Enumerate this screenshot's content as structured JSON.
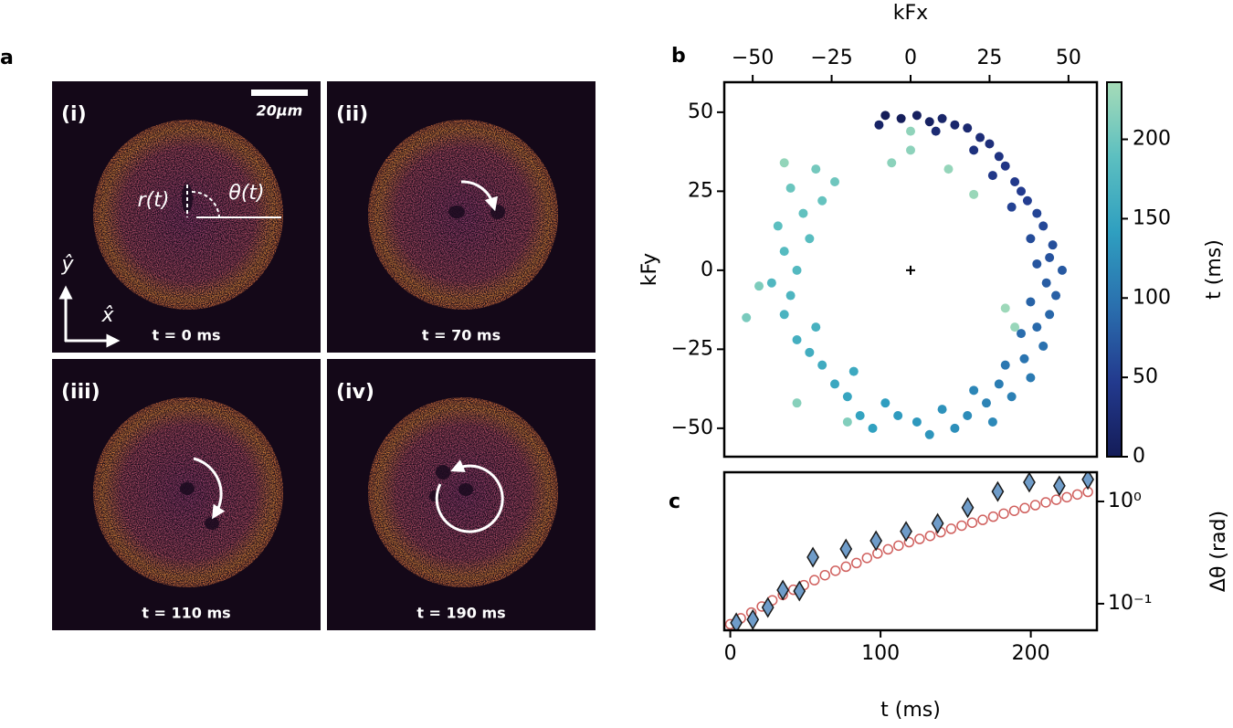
{
  "images": {
    "panel_label": "a",
    "scale_bar": "20μm",
    "panels": [
      {
        "label": "(i)",
        "time": "t = 0 ms"
      },
      {
        "label": "(ii)",
        "time": "t = 70 ms"
      },
      {
        "label": "(iii)",
        "time": "t = 110 ms"
      },
      {
        "label": "(iv)",
        "time": "t = 190 ms"
      }
    ],
    "annotations": {
      "radius": "r(t)",
      "angle": "θ(t)",
      "y_axis": "ŷ",
      "x_axis": "x̂"
    }
  },
  "chart_data": [
    {
      "type": "scatter",
      "panel_label": "b",
      "xlabel": "kFx",
      "ylabel": "kFy",
      "xaxis_position": "top",
      "yaxis_position": "left",
      "xlim": [
        -59,
        59
      ],
      "ylim": [
        -59,
        59.5
      ],
      "xticks": [
        {
          "value": -50,
          "label": "−50"
        },
        {
          "value": -25,
          "label": "−25"
        },
        0,
        25,
        50
      ],
      "yticks": [
        {
          "value": -50,
          "label": "−50"
        },
        {
          "value": -25,
          "label": "−25"
        },
        0,
        25,
        50
      ],
      "x": [
        -8,
        -3,
        2,
        6,
        -10,
        10,
        14,
        18,
        8,
        22,
        25,
        20,
        28,
        30,
        26,
        33,
        35,
        37,
        32,
        40,
        42,
        38,
        45,
        44,
        40,
        48,
        43,
        46,
        38,
        44,
        40,
        35,
        42,
        36,
        30,
        38,
        28,
        32,
        24,
        20,
        26,
        18,
        14,
        10,
        6,
        2,
        -4,
        -8,
        -12,
        -16,
        -20,
        -24,
        -18,
        -28,
        -32,
        -36,
        -30,
        -40,
        -38,
        -44,
        -36,
        -40,
        -32,
        -42,
        -34,
        -28,
        -38,
        -24,
        -30,
        -52,
        -48,
        -20,
        -36,
        -6,
        0,
        12,
        20,
        30,
        33,
        -40,
        0
      ],
      "values": [
        49,
        48,
        49,
        47,
        46,
        48,
        46,
        45,
        44,
        42,
        40,
        38,
        36,
        33,
        30,
        28,
        25,
        22,
        20,
        18,
        14,
        10,
        8,
        4,
        2,
        0,
        -4,
        -8,
        -10,
        -14,
        -18,
        -20,
        -24,
        -28,
        -30,
        -34,
        -36,
        -40,
        -42,
        -38,
        -48,
        -46,
        -50,
        -44,
        -52,
        -48,
        -46,
        -42,
        -50,
        -46,
        -40,
        -36,
        -32,
        -30,
        -26,
        -22,
        -18,
        -14,
        -8,
        -4,
        0,
        6,
        10,
        14,
        18,
        22,
        26,
        28,
        32,
        -15,
        -5,
        -48,
        -42,
        34,
        44,
        32,
        24,
        -12,
        -18,
        34,
        38
      ],
      "color_values": [
        0,
        3,
        6,
        9,
        12,
        15,
        18,
        21,
        24,
        27,
        30,
        33,
        36,
        39,
        42,
        45,
        48,
        51,
        54,
        57,
        60,
        63,
        66,
        69,
        72,
        75,
        78,
        81,
        84,
        87,
        90,
        93,
        96,
        99,
        102,
        105,
        108,
        111,
        114,
        117,
        120,
        123,
        126,
        129,
        132,
        135,
        138,
        141,
        144,
        147,
        150,
        153,
        156,
        159,
        162,
        165,
        168,
        171,
        174,
        177,
        180,
        183,
        186,
        189,
        192,
        195,
        198,
        201,
        204,
        207,
        210,
        213,
        216,
        219,
        222,
        225,
        228,
        230,
        227,
        224,
        220
      ],
      "center_marker": {
        "x": 0,
        "y": 0
      },
      "colorbar": {
        "label": "t (ms)",
        "lim": [
          0,
          236
        ],
        "ticks": [
          0,
          50,
          100,
          150,
          200
        ],
        "colormap": [
          "#141c58",
          "#233a8e",
          "#2a6fae",
          "#2f9fc0",
          "#5cbfc0",
          "#a6dcb8"
        ]
      }
    },
    {
      "type": "scatter",
      "panel_label": "c",
      "xlabel": "t (ms)",
      "ylabel": "Δθ (rad)",
      "xaxis_position": "bottom",
      "yaxis_position": "right",
      "log_y": true,
      "xlim": [
        -4,
        244
      ],
      "ylim": [
        0.055,
        1.93
      ],
      "xticks": [
        0,
        100,
        200
      ],
      "yticks": [
        {
          "value": 0.1,
          "label": "10⁻¹"
        },
        {
          "value": 1,
          "label": "10⁰"
        }
      ],
      "series": [
        {
          "marker": "circle",
          "color": "#d0605e",
          "x": [
            0,
            7,
            14,
            21,
            28,
            35,
            42,
            49,
            56,
            63,
            70,
            77,
            84,
            91,
            98,
            105,
            112,
            119,
            126,
            133,
            140,
            147,
            154,
            161,
            168,
            175,
            182,
            189,
            196,
            203,
            210,
            217,
            224,
            231,
            238
          ],
          "values": [
            0.063,
            0.072,
            0.082,
            0.094,
            0.108,
            0.122,
            0.137,
            0.152,
            0.17,
            0.19,
            0.21,
            0.23,
            0.25,
            0.28,
            0.31,
            0.34,
            0.37,
            0.4,
            0.43,
            0.46,
            0.5,
            0.54,
            0.58,
            0.62,
            0.66,
            0.71,
            0.76,
            0.81,
            0.86,
            0.92,
            0.98,
            1.04,
            1.1,
            1.17,
            1.24
          ]
        },
        {
          "marker": "diamond",
          "color": "#6f9cc9",
          "edgecolor": "#1a1a1a",
          "x": [
            4,
            15,
            25,
            35,
            46,
            55,
            77,
            97,
            117,
            138,
            158,
            178,
            199,
            219,
            238
          ],
          "values": [
            0.065,
            0.07,
            0.092,
            0.136,
            0.133,
            0.285,
            0.343,
            0.413,
            0.51,
            0.61,
            0.87,
            1.25,
            1.54,
            1.42,
            1.64
          ]
        }
      ]
    }
  ]
}
